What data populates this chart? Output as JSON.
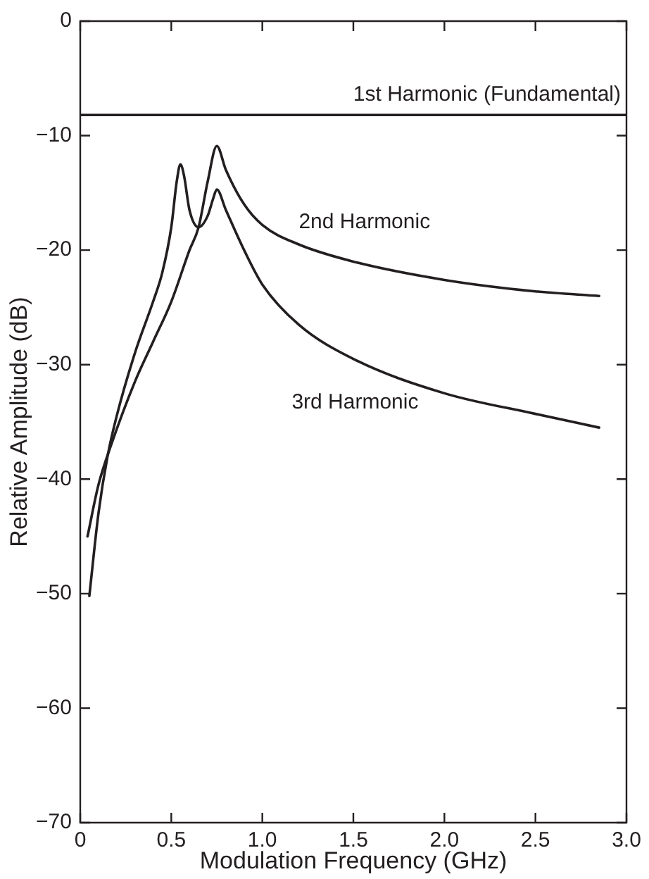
{
  "chart_data": {
    "type": "line",
    "xlabel": "Modulation Frequency (GHz)",
    "ylabel": "Relative Amplitude (dB)",
    "xlim": [
      0,
      3
    ],
    "xticks": [
      0,
      0.5,
      {
        "value": 1,
        "label": "1.0"
      },
      1.5,
      {
        "value": 2,
        "label": "2.0"
      },
      2.5,
      {
        "value": 3,
        "label": "3.0"
      }
    ],
    "ylim": [
      -70,
      0
    ],
    "yticks": [
      0,
      {
        "value": -10,
        "label": "−10"
      },
      {
        "value": -20,
        "label": "−20"
      },
      {
        "value": -30,
        "label": "−30"
      },
      {
        "value": -40,
        "label": "−40"
      },
      {
        "value": -50,
        "label": "−50"
      },
      {
        "value": -60,
        "label": "−60"
      },
      {
        "value": -70,
        "label": "−70"
      }
    ],
    "grid": false,
    "legend": false,
    "marker": "none",
    "line_style": "solid",
    "series": [
      {
        "name": "1st Harmonic (Fundamental)",
        "color": "#231f20",
        "x": [
          0,
          3
        ],
        "values": [
          -8.2,
          -8.2
        ]
      },
      {
        "name": "2nd Harmonic",
        "color": "#231f20",
        "x": [
          0.04,
          0.1,
          0.17,
          0.3,
          0.4,
          0.5,
          0.6,
          0.65,
          0.7,
          0.75,
          0.8,
          0.9,
          1.0,
          1.2,
          1.5,
          2.0,
          2.5,
          2.85
        ],
        "values": [
          -45,
          -40.5,
          -37,
          -31.5,
          -28,
          -24.5,
          -20,
          -18,
          -14,
          -10.9,
          -13,
          -16,
          -17.8,
          -19.5,
          -21,
          -22.6,
          -23.6,
          -24
        ]
      },
      {
        "name": "3rd Harmonic",
        "color": "#231f20",
        "x": [
          0.05,
          0.1,
          0.15,
          0.2,
          0.3,
          0.4,
          0.45,
          0.5,
          0.53,
          0.55,
          0.57,
          0.6,
          0.65,
          0.7,
          0.73,
          0.75,
          0.8,
          0.9,
          1.0,
          1.2,
          1.5,
          2.0,
          2.5,
          2.85
        ],
        "values": [
          -50.2,
          -43,
          -38,
          -34.5,
          -29,
          -24.5,
          -22,
          -18,
          -14,
          -12.5,
          -13.5,
          -16.5,
          -18,
          -17,
          -15.5,
          -14.7,
          -16.5,
          -20,
          -23,
          -26.5,
          -29.5,
          -32.5,
          -34.3,
          -35.5
        ]
      }
    ]
  }
}
